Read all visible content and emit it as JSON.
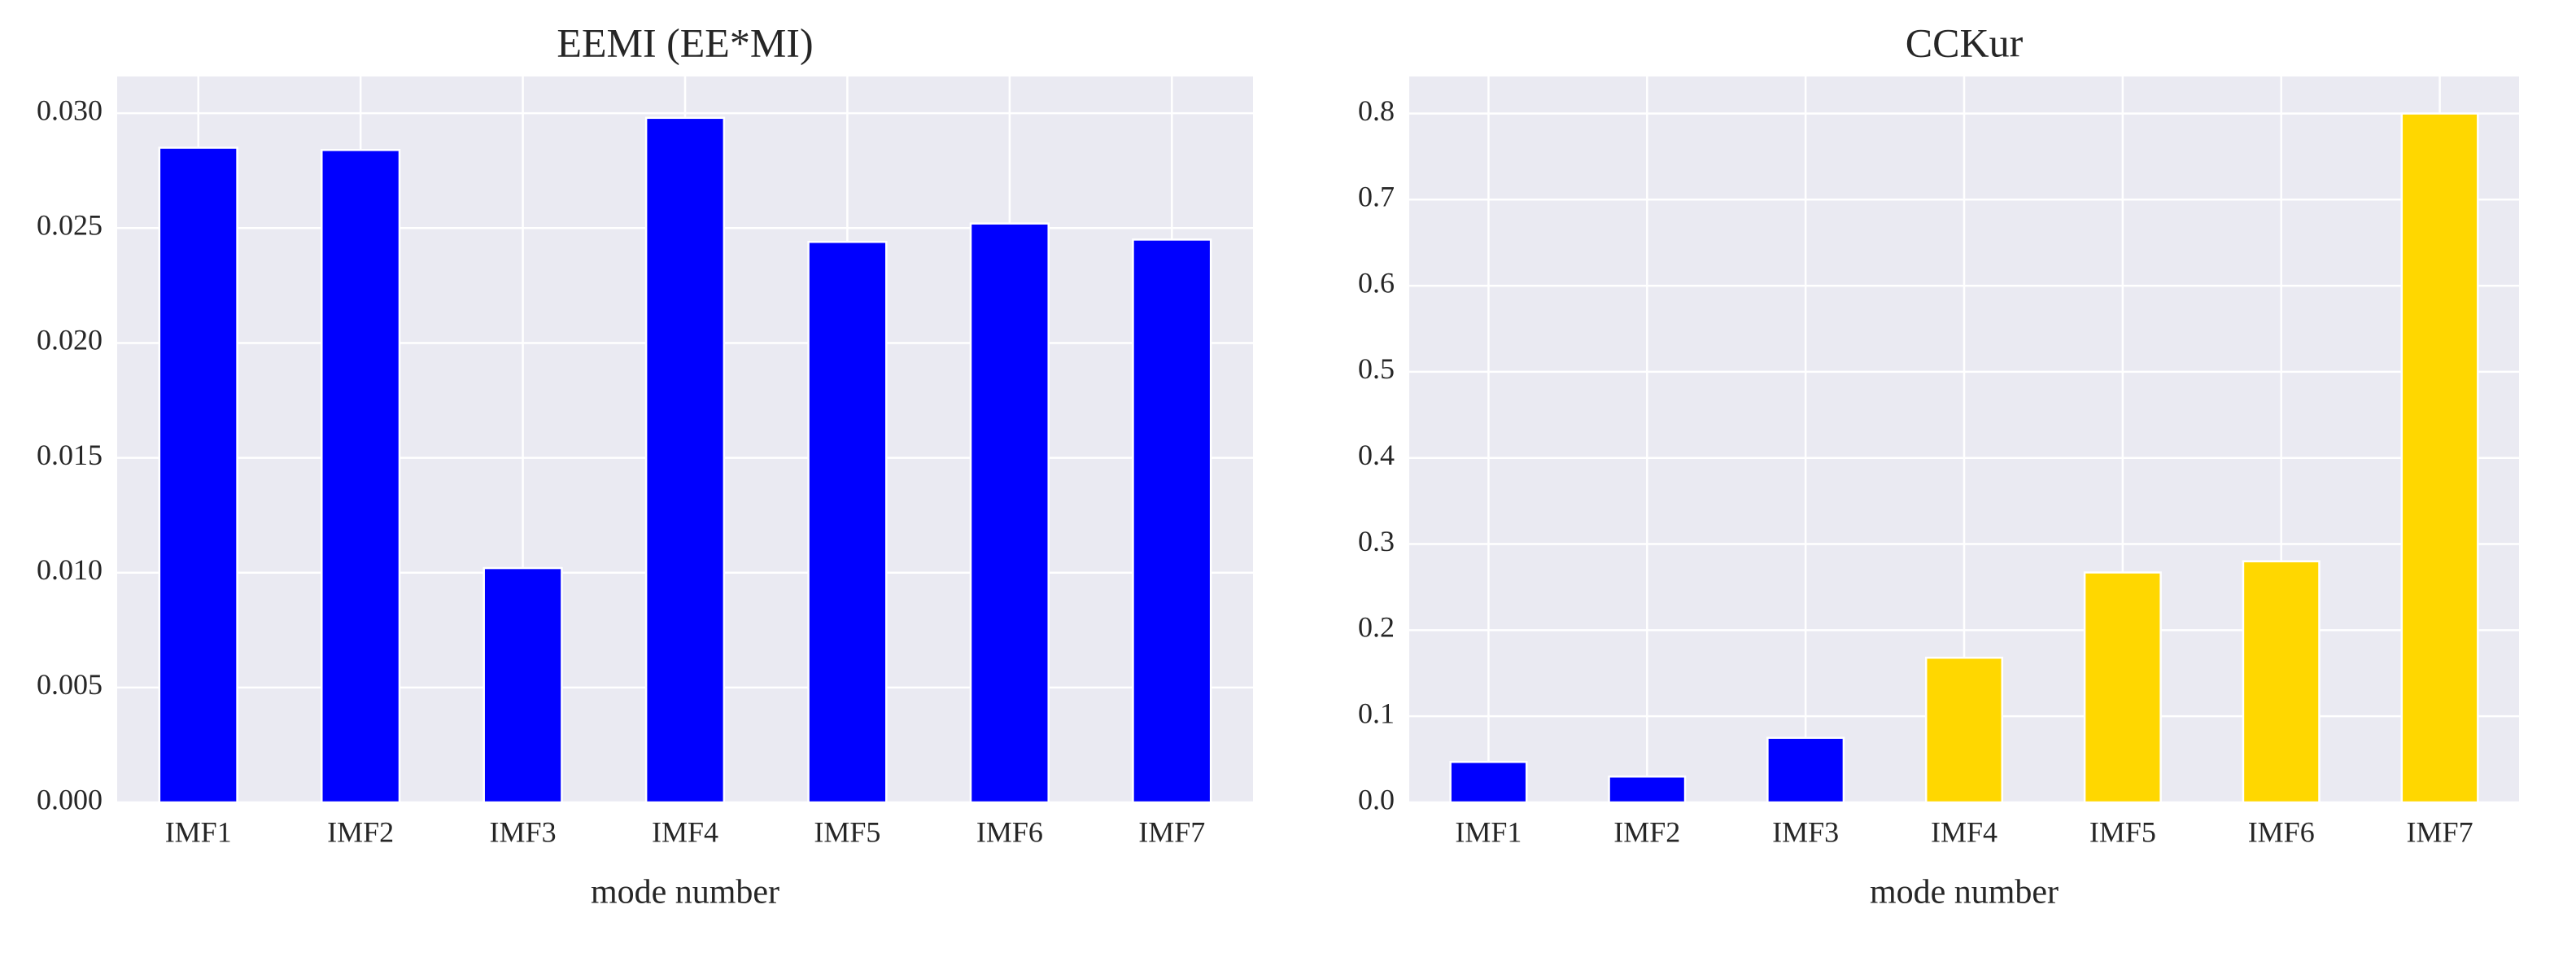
{
  "chart_data": [
    {
      "type": "bar",
      "title": "EEMI (EE*MI)",
      "xlabel": "mode number",
      "categories": [
        "IMF1",
        "IMF2",
        "IMF3",
        "IMF4",
        "IMF5",
        "IMF6",
        "IMF7"
      ],
      "values": [
        0.0285,
        0.0284,
        0.0102,
        0.0298,
        0.0244,
        0.0252,
        0.0245
      ],
      "colors": [
        "#0000ff",
        "#0000ff",
        "#0000ff",
        "#0000ff",
        "#0000ff",
        "#0000ff",
        "#0000ff"
      ],
      "ylim": [
        0,
        0.0316
      ],
      "yticks": [
        {
          "value": 0,
          "label": "0.000"
        },
        {
          "value": 0.005,
          "label": "0.005"
        },
        {
          "value": 0.01,
          "label": "0.010"
        },
        {
          "value": 0.015,
          "label": "0.015"
        },
        {
          "value": 0.02,
          "label": "0.020"
        },
        {
          "value": 0.025,
          "label": "0.025"
        },
        {
          "value": 0.03,
          "label": "0.030"
        }
      ],
      "grid": true
    },
    {
      "type": "bar",
      "title": "CCKur",
      "xlabel": "mode number",
      "categories": [
        "IMF1",
        "IMF2",
        "IMF3",
        "IMF4",
        "IMF5",
        "IMF6",
        "IMF7"
      ],
      "values": [
        0.047,
        0.03,
        0.075,
        0.168,
        0.267,
        0.28,
        0.8
      ],
      "colors": [
        "#0000ff",
        "#0000ff",
        "#0000ff",
        "#ffd700",
        "#ffd700",
        "#ffd700",
        "#ffd700"
      ],
      "ylim": [
        0,
        0.843
      ],
      "yticks": [
        {
          "value": 0,
          "label": "0.0"
        },
        0.1,
        0.2,
        0.3,
        0.4,
        0.5,
        0.6,
        0.7,
        0.8
      ],
      "grid": true
    }
  ]
}
